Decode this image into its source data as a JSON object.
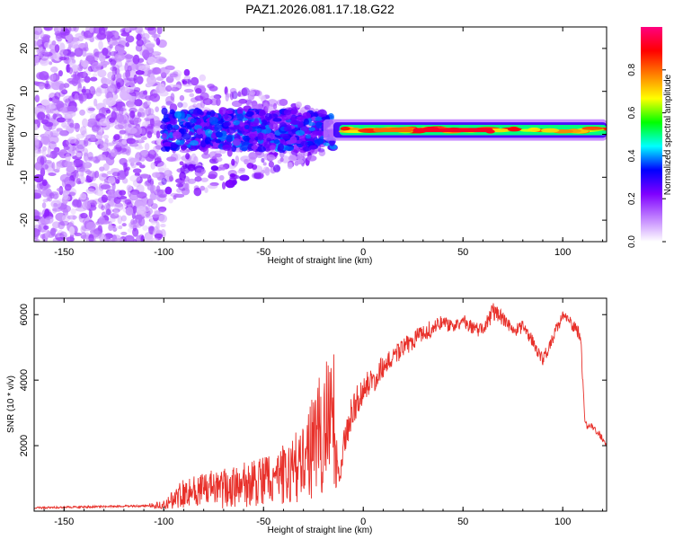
{
  "title": "PAZ1.2026.081.17.18.G22",
  "chart_data": [
    {
      "type": "heatmap",
      "xlabel": "Height of straight line (km)",
      "ylabel": "Frequency (Hz)",
      "xlim": [
        -165,
        122
      ],
      "ylim": [
        -25,
        25
      ],
      "x_ticks": [
        -150,
        -100,
        -50,
        0,
        50,
        100
      ],
      "y_ticks": [
        -20,
        -10,
        0,
        10,
        20
      ],
      "colorbar": {
        "label": "Normalized spectral amplitude",
        "range": [
          0,
          1
        ],
        "ticks": [
          "0.0",
          "0.2",
          "0.4",
          "0.6",
          "0.8"
        ],
        "colors": [
          "#ffffff",
          "#c080ff",
          "#7f00ff",
          "#0000ff",
          "#00ffff",
          "#00ff00",
          "#ffff00",
          "#ff8000",
          "#ff0000",
          "#ff0080"
        ]
      },
      "description_points": [
        {
          "x": -130,
          "amplitude": 0.12
        },
        {
          "x": -100,
          "amplitude": 0.2
        },
        {
          "x": -60,
          "amplitude": 0.25
        },
        {
          "x": -20,
          "amplitude": 0.35
        },
        {
          "x": 0,
          "amplitude": 0.6
        },
        {
          "x": 30,
          "amplitude": 0.85
        },
        {
          "x": 60,
          "amplitude": 0.9
        },
        {
          "x": 100,
          "amplitude": 0.75
        }
      ],
      "ridge_frequency": 1
    },
    {
      "type": "line",
      "xlabel": "Height of straight line (km)",
      "ylabel": "SNR (10 * v/v)",
      "xlim": [
        -165,
        122
      ],
      "ylim": [
        0,
        6500
      ],
      "x_ticks": [
        -150,
        -100,
        -50,
        0,
        50,
        100
      ],
      "y_ticks": [
        2000,
        4000,
        6000
      ],
      "color": "#e8302a",
      "x": [
        -165,
        -150,
        -130,
        -110,
        -100,
        -95,
        -90,
        -80,
        -70,
        -60,
        -50,
        -40,
        -30,
        -25,
        -20,
        -15,
        -12,
        -10,
        -5,
        0,
        5,
        10,
        15,
        20,
        25,
        30,
        35,
        40,
        45,
        50,
        55,
        60,
        65,
        70,
        75,
        80,
        85,
        90,
        95,
        100,
        105,
        109,
        111,
        112,
        115,
        120,
        122
      ],
      "values": [
        100,
        120,
        140,
        160,
        200,
        350,
        600,
        650,
        700,
        800,
        900,
        1100,
        1500,
        2000,
        2500,
        3000,
        600,
        2000,
        3200,
        3700,
        4000,
        4400,
        4700,
        5000,
        5200,
        5400,
        5600,
        5800,
        5600,
        5800,
        5600,
        5500,
        6100,
        5900,
        5500,
        5600,
        5200,
        4600,
        5300,
        6000,
        5700,
        5300,
        2800,
        2600,
        2600,
        2200,
        2050
      ],
      "noise_envelope": [
        0,
        0,
        0,
        0,
        150,
        300,
        500,
        500,
        600,
        700,
        800,
        900,
        1200,
        1600,
        2000,
        2200,
        400,
        500,
        500,
        450,
        400,
        350,
        300,
        300,
        300,
        250,
        250,
        200,
        200,
        200,
        200,
        200,
        250,
        200,
        200,
        200,
        200,
        200,
        200,
        200,
        200,
        200,
        100,
        100,
        100,
        100,
        100
      ]
    }
  ]
}
